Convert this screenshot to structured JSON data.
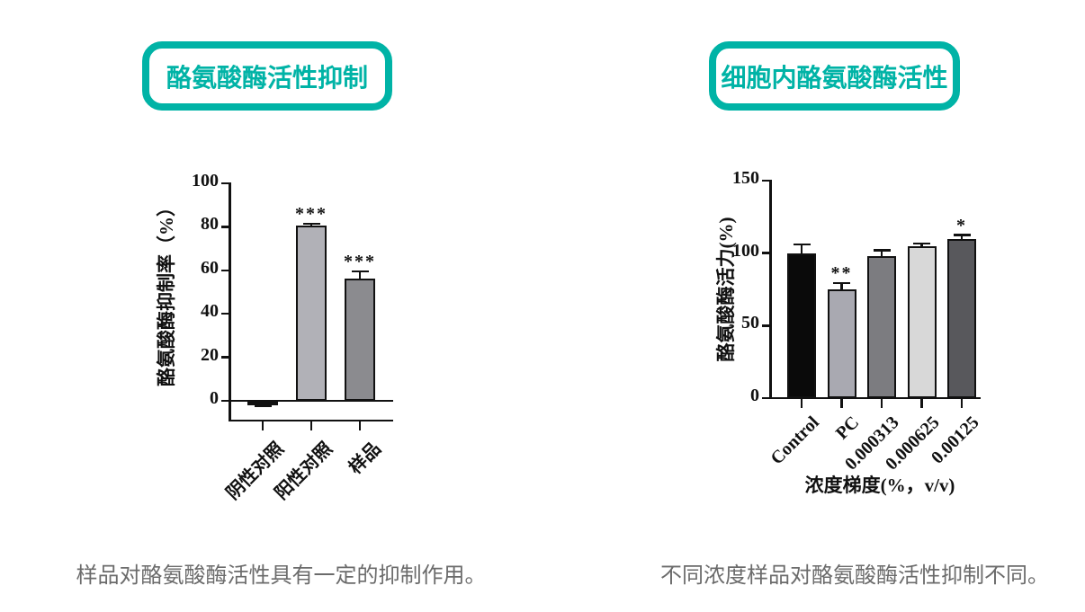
{
  "accent_color": "#00b3a6",
  "caption_color": "#6b6b6b",
  "left": {
    "title": "酪氨酸酶活性抑制",
    "caption": "样品对酪氨酸酶活性具有一定的抑制作用。"
  },
  "right": {
    "title": "细胞内酪氨酸酶活性",
    "caption": "不同浓度样品对酪氨酸酶活性抑制不同。"
  },
  "chart_data": [
    {
      "type": "bar",
      "title": "酪氨酸酶活性抑制",
      "categories": [
        "阴性对照",
        "阳性对照",
        "样品"
      ],
      "values": [
        -1,
        80.5,
        56
      ],
      "errors": [
        1.5,
        1,
        3.5
      ],
      "significance": [
        "",
        "***",
        "***"
      ],
      "bar_colors": [
        "#b1b1b7",
        "#b1b1b7",
        "#8b8b8f"
      ],
      "bar_border_color": "#111111",
      "ylabel": "酪氨酸酶抑制率（%）",
      "xlabel": "",
      "yticks": [
        0,
        20,
        40,
        60,
        80,
        100
      ],
      "ylim": [
        0,
        100
      ],
      "grid": false,
      "legend": null
    },
    {
      "type": "bar",
      "title": "细胞内酪氨酸酶活性",
      "categories": [
        "Control",
        "PC",
        "0.000313",
        "0.000625",
        "0.00125"
      ],
      "values": [
        100,
        75,
        98,
        105,
        110
      ],
      "errors": [
        6,
        4.5,
        4,
        1.5,
        2.5
      ],
      "significance": [
        "",
        "**",
        "",
        "",
        "*"
      ],
      "bar_colors": [
        "#0a0a0a",
        "#a9a9b1",
        "#7c7c80",
        "#d8d8d8",
        "#58585c"
      ],
      "bar_border_color": "#111111",
      "ylabel": "酪氨酸酶活力(%)",
      "xlabel": "浓度梯度(%，v/v)",
      "yticks": [
        0,
        50,
        100,
        150
      ],
      "ylim": [
        0,
        150
      ],
      "grid": false,
      "legend": null
    }
  ]
}
